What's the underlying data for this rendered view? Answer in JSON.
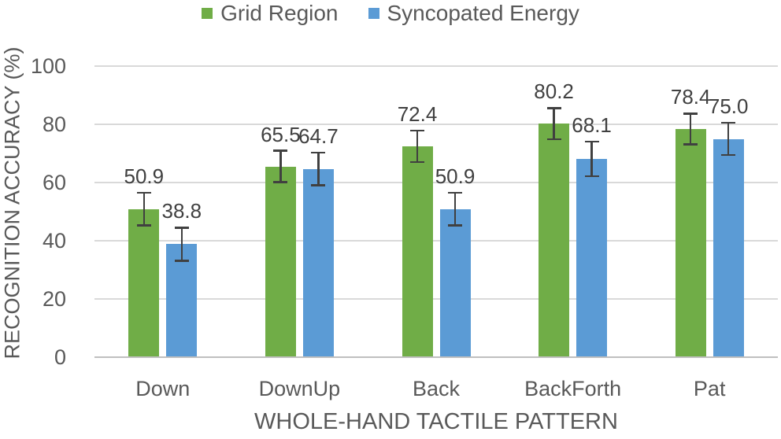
{
  "chart_data": {
    "type": "bar",
    "title": "",
    "categories": [
      "Down",
      "DownUp",
      "Back",
      "BackForth",
      "Pat"
    ],
    "series": [
      {
        "name": "Grid Region",
        "color": "#70AD47",
        "values": [
          50.9,
          65.5,
          72.4,
          80.2,
          78.4
        ],
        "labels": [
          "50.9",
          "65.5",
          "72.4",
          "80.2",
          "78.4"
        ],
        "error": [
          5.6,
          5.4,
          5.4,
          5.4,
          5.3
        ]
      },
      {
        "name": "Syncopated Energy",
        "color": "#5B9BD5",
        "values": [
          38.8,
          64.7,
          50.9,
          68.1,
          75.0
        ],
        "labels": [
          "38.8",
          "64.7",
          "50.9",
          "68.1",
          "75.0"
        ],
        "error": [
          5.7,
          5.6,
          5.6,
          6.0,
          5.6
        ]
      }
    ],
    "xlabel": "WHOLE-HAND TACTILE PATTERN",
    "ylabel": "RECOGNITION ACCURACY (%)",
    "yticks": [
      0,
      20,
      40,
      60,
      80,
      100
    ],
    "ylim": [
      0,
      100
    ],
    "grid": true,
    "error_bars": true,
    "data_labels": true,
    "legend_position": "top",
    "colors": {
      "gridline": "#D9D9D9",
      "axis_line": "#BFBFBF",
      "text": "#595959",
      "data_label_text": "#404040",
      "error_bar": "#404040"
    }
  }
}
